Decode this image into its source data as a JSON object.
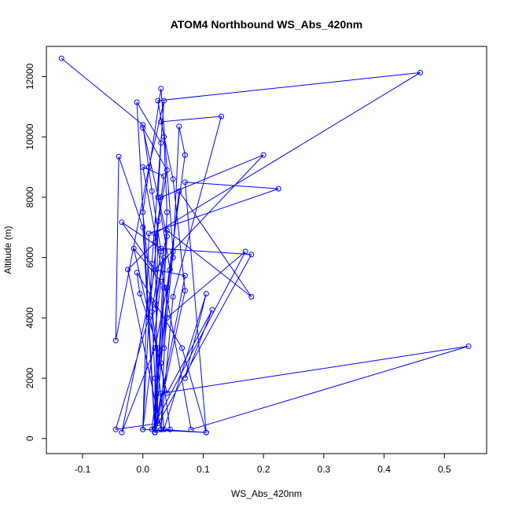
{
  "chart_data": {
    "type": "scatter",
    "title": "ATOM4 Northbound WS_Abs_420nm",
    "xlabel": "WS_Abs_420nm",
    "ylabel": "Altitude (m)",
    "xlim": [
      -0.16,
      0.57
    ],
    "ylim": [
      -500,
      13000
    ],
    "xticks": [
      -0.1,
      0.0,
      0.1,
      0.2,
      0.3,
      0.4,
      0.5
    ],
    "xtick_labels": [
      "-0.1",
      "0.0",
      "0.1",
      "0.2",
      "0.3",
      "0.4",
      "0.5"
    ],
    "yticks": [
      0,
      2000,
      4000,
      6000,
      8000,
      10000,
      12000
    ],
    "ytick_labels": [
      "0",
      "2000",
      "4000",
      "6000",
      "8000",
      "10000",
      "12000"
    ],
    "grid": false,
    "legend": "none",
    "series": [
      {
        "color": "#0000ff",
        "marker": "open-circle",
        "connected": true,
        "points": [
          [
            -0.135,
            12600
          ],
          [
            0.0,
            10400
          ],
          [
            0.015,
            8200
          ],
          [
            0.03,
            6200
          ],
          [
            0.015,
            4200
          ],
          [
            0.02,
            2000
          ],
          [
            0.02,
            200
          ],
          [
            0.045,
            300
          ],
          [
            0.03,
            2500
          ],
          [
            0.035,
            5000
          ],
          [
            0.04,
            7500
          ],
          [
            0.035,
            10000
          ],
          [
            0.025,
            11200
          ],
          [
            0.46,
            12130
          ],
          [
            0.02,
            6800
          ],
          [
            0.025,
            500
          ],
          [
            -0.045,
            300
          ],
          [
            0.01,
            4000
          ],
          [
            0.03,
            8000
          ],
          [
            0.2,
            9400
          ],
          [
            0.02,
            5600
          ],
          [
            -0.035,
            200
          ],
          [
            0.02,
            3000
          ],
          [
            0.05,
            6000
          ],
          [
            0.06,
            10350
          ],
          [
            0.07,
            9400
          ],
          [
            0.04,
            5000
          ],
          [
            0.03,
            300
          ],
          [
            0.105,
            200
          ],
          [
            0.07,
            8500
          ],
          [
            0.225,
            8280
          ],
          [
            0.01,
            6800
          ],
          [
            0.0,
            300
          ],
          [
            0.015,
            5800
          ],
          [
            0.035,
            11200
          ],
          [
            0.01,
            9000
          ],
          [
            -0.045,
            3250
          ],
          [
            -0.04,
            9350
          ],
          [
            0.0,
            7000
          ],
          [
            0.02,
            200
          ],
          [
            0.03,
            1500
          ],
          [
            0.54,
            3060
          ],
          [
            0.08,
            300
          ],
          [
            0.0,
            9000
          ],
          [
            0.035,
            8700
          ],
          [
            0.025,
            7200
          ],
          [
            0.02,
            200
          ],
          [
            0.07,
            4900
          ],
          [
            0.05,
            8600
          ],
          [
            0.03,
            10500
          ],
          [
            0.13,
            10680
          ],
          [
            0.05,
            4700
          ],
          [
            0.03,
            300
          ],
          [
            -0.025,
            5600
          ],
          [
            0.02,
            6500
          ],
          [
            0.04,
            8900
          ],
          [
            0.0,
            10300
          ],
          [
            0.04,
            6700
          ],
          [
            0.02,
            300
          ],
          [
            0.18,
            6100
          ],
          [
            0.03,
            6300
          ],
          [
            -0.035,
            7170
          ],
          [
            0.02,
            5600
          ],
          [
            0.07,
            5400
          ],
          [
            0.02,
            300
          ],
          [
            0.035,
            6000
          ],
          [
            0.02,
            4300
          ],
          [
            0.04,
            6900
          ],
          [
            0.18,
            4700
          ],
          [
            0.06,
            8200
          ],
          [
            0.015,
            300
          ],
          [
            0.17,
            6200
          ],
          [
            0.04,
            4000
          ],
          [
            0.035,
            3000
          ],
          [
            0.05,
            6200
          ],
          [
            0.03,
            11600
          ],
          [
            0.0,
            7500
          ],
          [
            0.035,
            300
          ],
          [
            0.105,
            4800
          ],
          [
            0.07,
            2000
          ],
          [
            0.115,
            4270
          ],
          [
            0.04,
            1500
          ],
          [
            -0.015,
            6300
          ],
          [
            0.03,
            5200
          ],
          [
            0.0,
            300
          ],
          [
            0.105,
            200
          ],
          [
            0.065,
            3000
          ],
          [
            0.02,
            4500
          ],
          [
            -0.01,
            5500
          ],
          [
            -0.005,
            4800
          ],
          [
            0.025,
            3000
          ],
          [
            0.02,
            300
          ],
          [
            -0.01,
            11150
          ],
          [
            0.03,
            9800
          ],
          [
            0.025,
            8000
          ],
          [
            0.045,
            5600
          ],
          [
            0.03,
            2500
          ],
          [
            0.02,
            200
          ]
        ]
      }
    ]
  }
}
